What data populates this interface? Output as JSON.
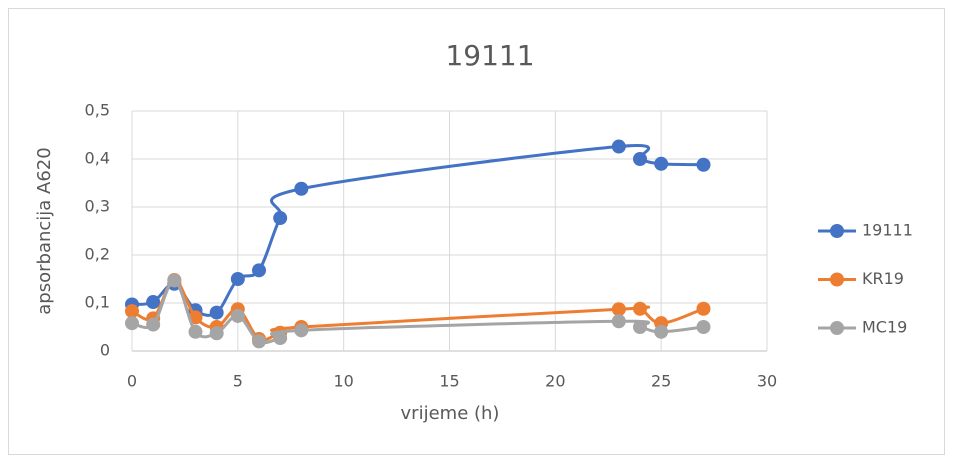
{
  "chart_data": {
    "type": "line",
    "title": "19111",
    "x_label": "vrijeme (h)",
    "y_label": "apsorbancija A620",
    "x": [
      0,
      1,
      2,
      3,
      4,
      5,
      6,
      7,
      8,
      23,
      24,
      25,
      27
    ],
    "series": [
      {
        "name": "19111",
        "color": "#4472c4",
        "values": [
          0.097,
          0.102,
          0.14,
          0.085,
          0.08,
          0.15,
          0.168,
          0.277,
          0.338,
          0.426,
          0.4,
          0.39,
          0.388
        ]
      },
      {
        "name": "KR19",
        "color": "#ed7d31",
        "values": [
          0.083,
          0.068,
          0.148,
          0.07,
          0.05,
          0.087,
          0.025,
          0.038,
          0.05,
          0.087,
          0.088,
          0.058,
          0.088
        ]
      },
      {
        "name": "MC19",
        "color": "#a5a5a5",
        "values": [
          0.058,
          0.055,
          0.147,
          0.04,
          0.037,
          0.073,
          0.02,
          0.027,
          0.043,
          0.062,
          0.05,
          0.04,
          0.05
        ]
      }
    ],
    "xlim": [
      0,
      30
    ],
    "xticks": [
      0,
      5,
      10,
      15,
      20,
      25,
      30
    ],
    "ylim": [
      0,
      0.5
    ],
    "yticks": [
      0,
      {
        "value": 0.1,
        "label": "0,1"
      },
      {
        "value": 0.2,
        "label": "0,2"
      },
      {
        "value": 0.3,
        "label": "0,3"
      },
      {
        "value": 0.4,
        "label": "0,4"
      },
      {
        "value": 0.5,
        "label": "0,5"
      }
    ],
    "grid": true,
    "legend": "right"
  }
}
